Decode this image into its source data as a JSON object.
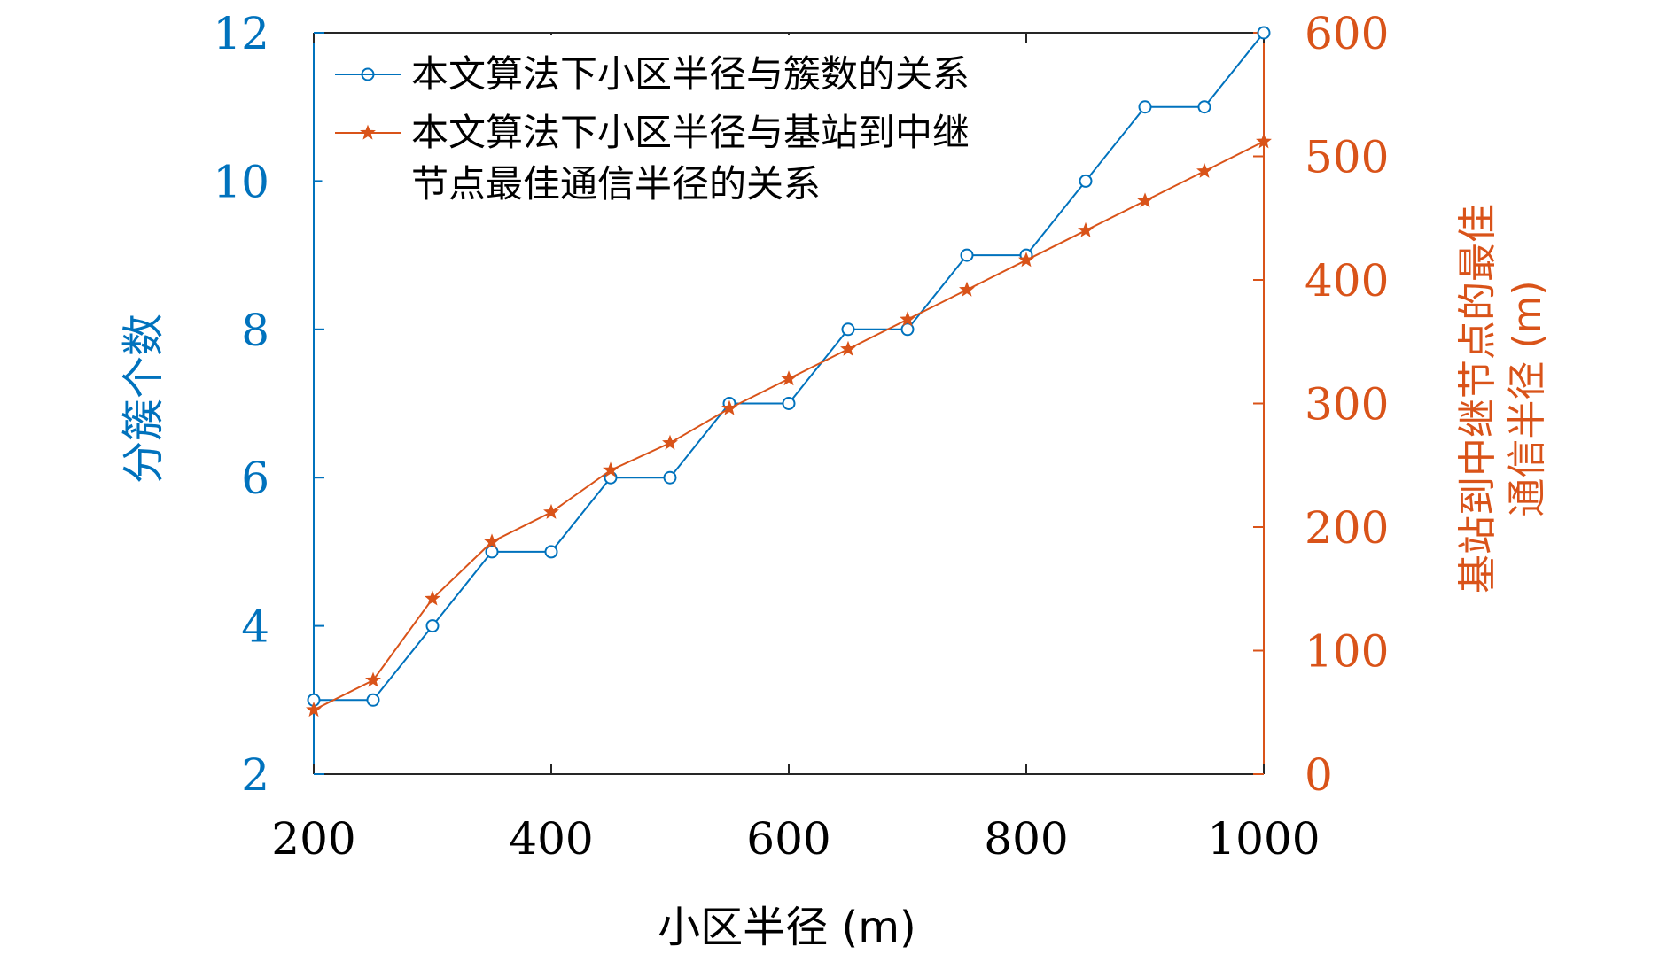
{
  "chart_data": {
    "type": "line",
    "xlabel": "小区半径 (m)",
    "ylabel_left": "分簇个数",
    "ylabel_right_lines": [
      "基站到中继节点的最佳",
      "通信半径 (m)"
    ],
    "xlim": [
      200,
      1000
    ],
    "ylim_left": [
      2,
      12
    ],
    "ylim_right": [
      0,
      600
    ],
    "x_ticks": [
      200,
      400,
      600,
      800,
      1000
    ],
    "y_left_ticks": [
      2,
      4,
      6,
      8,
      10,
      12
    ],
    "y_right_ticks": [
      0,
      100,
      200,
      300,
      400,
      500,
      600
    ],
    "grid": false,
    "legend_position": "top-left",
    "colors": {
      "left": "#0072BD",
      "right": "#D95319",
      "axis": "#262626"
    },
    "series": [
      {
        "name": "本文算法下小区半径与簇数的关系",
        "axis": "left",
        "marker": "circle",
        "color": "#0072BD",
        "x": [
          200,
          250,
          300,
          350,
          400,
          450,
          500,
          550,
          600,
          650,
          700,
          750,
          800,
          850,
          900,
          950,
          1000
        ],
        "y": [
          3,
          3,
          4,
          5,
          5,
          6,
          6,
          7,
          7,
          8,
          8,
          9,
          9,
          10,
          11,
          11,
          12
        ]
      },
      {
        "name": "本文算法下小区半径与基站到中继节点最佳通信半径的关系",
        "legend_lines": [
          "本文算法下小区半径与基站到中继",
          "节点最佳通信半径的关系"
        ],
        "axis": "right",
        "marker": "star",
        "color": "#D95319",
        "x": [
          200,
          250,
          300,
          350,
          400,
          450,
          500,
          550,
          600,
          650,
          700,
          750,
          800,
          850,
          900,
          950,
          1000
        ],
        "y": [
          52,
          76,
          142,
          188,
          212,
          246,
          268,
          296,
          320,
          344,
          368,
          392,
          416,
          440,
          464,
          488,
          512
        ]
      }
    ]
  }
}
